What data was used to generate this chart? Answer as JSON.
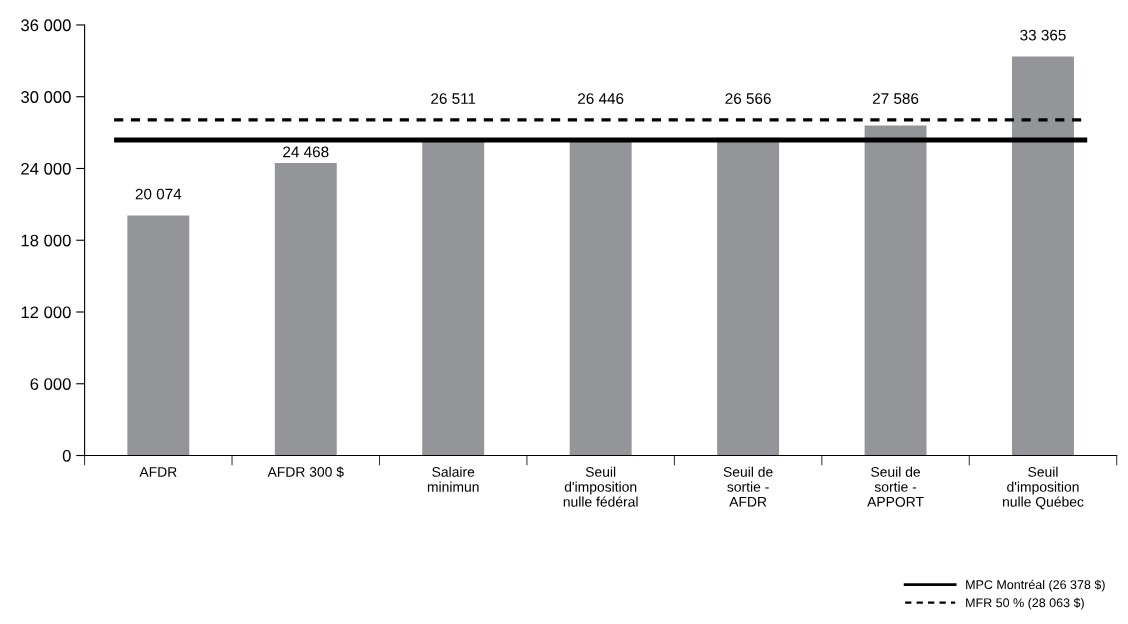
{
  "chart_data": {
    "type": "bar",
    "categories": [
      "AFDR",
      "AFDR 300 $",
      "Salaire\nminimun",
      "Seuil\nd'imposition\nnulle fédéral",
      "Seuil de\nsortie -\nAFDR",
      "Seuil de\nsortie -\nAPPORT",
      "Seuil\nd'imposition\nnulle Québec"
    ],
    "values": [
      20074,
      24468,
      26511,
      26446,
      26566,
      27586,
      33365
    ],
    "value_labels": [
      "20 074",
      "24 468",
      "26 511",
      "26 446",
      "26 566",
      "27 586",
      "33 365"
    ],
    "color": "#939598",
    "ylim": [
      0,
      36000
    ],
    "yticks": [
      {
        "value": 0,
        "label": "0"
      },
      {
        "value": 6000,
        "label": "6 000"
      },
      {
        "value": 12000,
        "label": "12 000"
      },
      {
        "value": 18000,
        "label": "18 000"
      },
      {
        "value": 24000,
        "label": "24 000"
      },
      {
        "value": 30000,
        "label": "30 000"
      },
      {
        "value": 36000,
        "label": "36 000"
      }
    ],
    "ref_lines": [
      {
        "axis": "y",
        "value": 26378,
        "label": "MPC Montréal (26 378 $)",
        "color": "#000000",
        "line_style": "solid"
      },
      {
        "axis": "y",
        "value": 28063,
        "label": "MFR 50 % (28 063 $)",
        "color": "#000000",
        "line_style": "dashed"
      }
    ],
    "grid": false,
    "legend": "bottom right"
  }
}
